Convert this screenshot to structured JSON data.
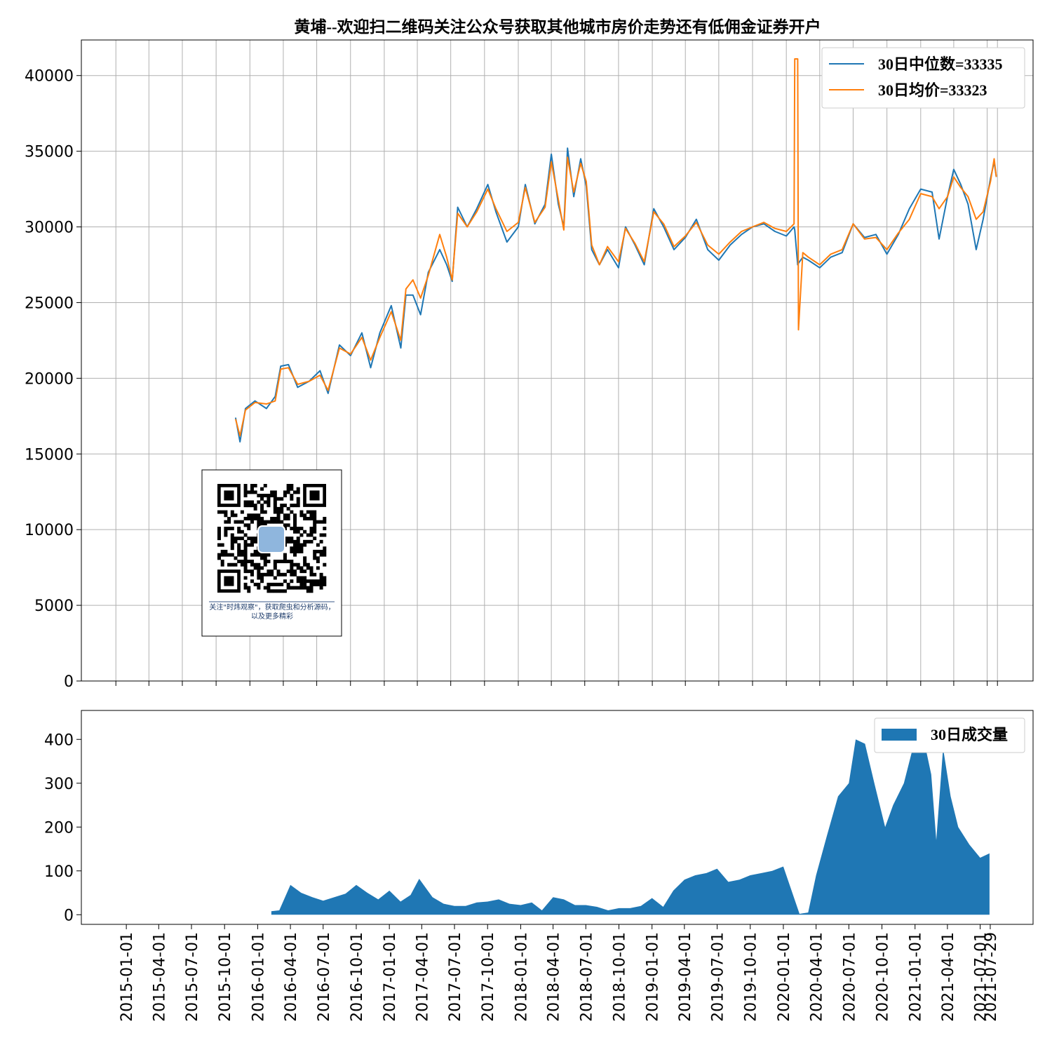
{
  "chart_data": [
    {
      "type": "line",
      "title": "黄埔--欢迎扫二维码关注公众号获取其他城市房价走势还有低佣金证券开户",
      "annotation": "关注\"时炜观察\"，获取爬虫和分析源码，以及更多精彩",
      "x": [
        "2015-11-23",
        "2015-12-05",
        "2015-12-20",
        "2016-01-15",
        "2016-02-15",
        "2016-03-10",
        "2016-03-25",
        "2016-04-15",
        "2016-05-10",
        "2016-06-10",
        "2016-07-10",
        "2016-08-01",
        "2016-09-01",
        "2016-10-01",
        "2016-11-01",
        "2016-11-25",
        "2016-12-20",
        "2017-01-20",
        "2017-02-15",
        "2017-03-01",
        "2017-03-20",
        "2017-04-10",
        "2017-05-01",
        "2017-06-01",
        "2017-06-20",
        "2017-07-05",
        "2017-07-20",
        "2017-08-15",
        "2017-09-10",
        "2017-10-10",
        "2017-11-01",
        "2017-12-01",
        "2018-01-01",
        "2018-01-20",
        "2018-02-15",
        "2018-03-15",
        "2018-04-01",
        "2018-04-20",
        "2018-05-05",
        "2018-05-15",
        "2018-06-01",
        "2018-06-20",
        "2018-07-05",
        "2018-07-20",
        "2018-08-10",
        "2018-09-01",
        "2018-10-01",
        "2018-10-20",
        "2018-11-15",
        "2018-12-10",
        "2019-01-05",
        "2019-02-01",
        "2019-03-01",
        "2019-04-01",
        "2019-05-01",
        "2019-06-01",
        "2019-07-01",
        "2019-08-01",
        "2019-09-01",
        "2019-10-01",
        "2019-11-01",
        "2019-12-01",
        "2020-01-01",
        "2020-01-22",
        "2020-01-24",
        "2020-02-01",
        "2020-02-03",
        "2020-02-15",
        "2020-03-01",
        "2020-04-01",
        "2020-05-01",
        "2020-06-01",
        "2020-07-01",
        "2020-08-01",
        "2020-09-01",
        "2020-10-01",
        "2020-11-01",
        "2020-12-01",
        "2021-01-01",
        "2021-02-01",
        "2021-02-20",
        "2021-03-15",
        "2021-04-01",
        "2021-04-20",
        "2021-05-10",
        "2021-06-01",
        "2021-06-20",
        "2021-07-10",
        "2021-07-20",
        "2021-07-26"
      ],
      "series": [
        {
          "name": "30日中位数=33335",
          "color": "#1f77b4",
          "values": [
            17400,
            15800,
            18000,
            18500,
            18000,
            18800,
            20800,
            20900,
            19400,
            19800,
            20500,
            19000,
            22200,
            21500,
            23000,
            20700,
            23000,
            24800,
            22000,
            25500,
            25500,
            24200,
            27000,
            28500,
            27500,
            26400,
            31300,
            30000,
            31200,
            32800,
            31000,
            29000,
            30000,
            32800,
            30200,
            31500,
            34800,
            31500,
            30000,
            35200,
            32000,
            34500,
            32700,
            28500,
            27500,
            28500,
            27300,
            30000,
            28800,
            27500,
            31200,
            30000,
            28500,
            29300,
            30500,
            28500,
            27800,
            28800,
            29500,
            30000,
            30200,
            29700,
            29400,
            30000,
            29800,
            27500,
            27600,
            28000,
            27800,
            27300,
            28000,
            28300,
            30200,
            29300,
            29500,
            28200,
            29500,
            31200,
            32500,
            32300,
            29200,
            32000,
            33800,
            32800,
            31500,
            28500,
            30500,
            33200,
            34300,
            33300
          ]
        },
        {
          "name": "30日均价=33323",
          "color": "#ff7f0e",
          "values": [
            17300,
            16200,
            17900,
            18400,
            18300,
            18500,
            20600,
            20700,
            19600,
            19800,
            20200,
            19200,
            22000,
            21600,
            22700,
            21200,
            22700,
            24400,
            22500,
            25900,
            26500,
            25300,
            26800,
            29500,
            28000,
            26500,
            30900,
            30000,
            31000,
            32500,
            31200,
            29700,
            30300,
            32600,
            30300,
            31300,
            34300,
            31800,
            29800,
            34600,
            32300,
            34200,
            33000,
            28800,
            27500,
            28700,
            27700,
            29900,
            28900,
            27700,
            31000,
            30200,
            28700,
            29400,
            30300,
            28800,
            28200,
            29000,
            29700,
            30000,
            30300,
            29900,
            29700,
            30200,
            41100,
            41100,
            23200,
            28300,
            28000,
            27500,
            28200,
            28500,
            30200,
            29200,
            29300,
            28500,
            29600,
            30500,
            32200,
            32000,
            31200,
            32000,
            33300,
            32600,
            32000,
            30500,
            31000,
            33000,
            34500,
            33300
          ]
        }
      ],
      "xlim": [
        "2014-09-29",
        "2021-11-03"
      ],
      "xticks": [
        "2015-01-01",
        "2015-04-01",
        "2015-07-01",
        "2015-10-01",
        "2016-01-01",
        "2016-04-01",
        "2016-07-01",
        "2016-10-01",
        "2017-01-01",
        "2017-04-01",
        "2017-07-01",
        "2017-10-01",
        "2018-01-01",
        "2018-04-01",
        "2018-07-01",
        "2018-10-01",
        "2019-01-01",
        "2019-04-01",
        "2019-07-01",
        "2019-10-01",
        "2020-01-01",
        "2020-04-01",
        "2020-07-01",
        "2020-10-01",
        "2021-01-01",
        "2021-04-01",
        "2021-07-01",
        "2021-07-29"
      ],
      "ylim": [
        0,
        42350
      ],
      "yticks": [
        0,
        5000,
        10000,
        15000,
        20000,
        25000,
        30000,
        35000,
        40000
      ],
      "grid": true,
      "legend": "upper right"
    },
    {
      "type": "area",
      "x": [
        "2016-02-08",
        "2016-03-01",
        "2016-04-01",
        "2016-05-01",
        "2016-06-01",
        "2016-07-01",
        "2016-08-01",
        "2016-09-01",
        "2016-10-01",
        "2016-11-01",
        "2016-12-01",
        "2017-01-01",
        "2017-02-01",
        "2017-03-01",
        "2017-03-25",
        "2017-05-01",
        "2017-06-01",
        "2017-07-01",
        "2017-08-01",
        "2017-09-01",
        "2017-10-01",
        "2017-11-01",
        "2017-12-01",
        "2018-01-01",
        "2018-02-01",
        "2018-03-01",
        "2018-04-01",
        "2018-05-01",
        "2018-06-01",
        "2018-07-01",
        "2018-08-01",
        "2018-09-01",
        "2018-10-01",
        "2018-11-01",
        "2018-12-01",
        "2019-01-01",
        "2019-02-01",
        "2019-03-01",
        "2019-04-01",
        "2019-05-01",
        "2019-06-01",
        "2019-07-01",
        "2019-08-01",
        "2019-09-01",
        "2019-10-01",
        "2019-11-01",
        "2019-12-01",
        "2020-01-01",
        "2020-02-15",
        "2020-03-10",
        "2020-04-01",
        "2020-05-01",
        "2020-06-01",
        "2020-07-01",
        "2020-07-20",
        "2020-08-15",
        "2020-09-10",
        "2020-10-10",
        "2020-11-01",
        "2020-12-01",
        "2021-01-01",
        "2021-01-20",
        "2021-02-15",
        "2021-03-01",
        "2021-03-20",
        "2021-04-10",
        "2021-05-01",
        "2021-06-01",
        "2021-07-01",
        "2021-07-27"
      ],
      "series": [
        {
          "name": "30日成交量",
          "color": "#1f77b4",
          "values": [
            8,
            10,
            68,
            50,
            40,
            32,
            40,
            48,
            68,
            50,
            35,
            55,
            30,
            45,
            82,
            40,
            25,
            20,
            20,
            28,
            30,
            35,
            25,
            22,
            28,
            10,
            40,
            35,
            22,
            22,
            18,
            10,
            15,
            15,
            20,
            38,
            18,
            55,
            80,
            90,
            95,
            105,
            75,
            80,
            90,
            95,
            100,
            110,
            2,
            5,
            90,
            180,
            270,
            300,
            400,
            390,
            300,
            200,
            250,
            300,
            400,
            420,
            320,
            170,
            380,
            270,
            200,
            160,
            130,
            140
          ]
        }
      ],
      "xlim": [
        "2014-08-29",
        "2021-11-25"
      ],
      "xticks": [
        "2015-01-01",
        "2015-04-01",
        "2015-07-01",
        "2015-10-01",
        "2016-01-01",
        "2016-04-01",
        "2016-07-01",
        "2016-10-01",
        "2017-01-01",
        "2017-04-01",
        "2017-07-01",
        "2017-10-01",
        "2018-01-01",
        "2018-04-01",
        "2018-07-01",
        "2018-10-01",
        "2019-01-01",
        "2019-04-01",
        "2019-07-01",
        "2019-10-01",
        "2020-01-01",
        "2020-04-01",
        "2020-07-01",
        "2020-10-01",
        "2021-01-01",
        "2021-04-01",
        "2021-07-01",
        "2021-07-29"
      ],
      "ylim": [
        -22,
        466
      ],
      "yticks": [
        0,
        100,
        200,
        300,
        400
      ],
      "grid": false,
      "legend": "upper right"
    }
  ]
}
